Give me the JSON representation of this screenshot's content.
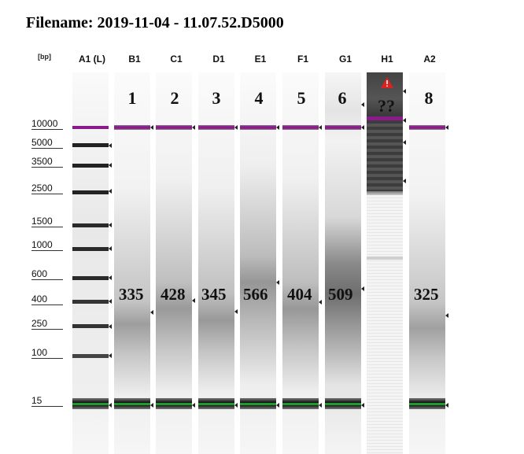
{
  "title": "Filename: 2019-11-04 - 11.07.52.D5000",
  "bp_label": "[bp]",
  "ladder_marks": [
    "10000",
    "5000",
    "3500",
    "2500",
    "1500",
    "1000",
    "600",
    "400",
    "250",
    "100",
    "15"
  ],
  "lanes": [
    {
      "label": "A1 (L)",
      "sample": "",
      "size": ""
    },
    {
      "label": "B1",
      "sample": "1",
      "size": "335"
    },
    {
      "label": "C1",
      "sample": "2",
      "size": "428"
    },
    {
      "label": "D1",
      "sample": "3",
      "size": "345"
    },
    {
      "label": "E1",
      "sample": "4",
      "size": "566"
    },
    {
      "label": "F1",
      "sample": "5",
      "size": "404"
    },
    {
      "label": "G1",
      "sample": "6",
      "size": "509"
    },
    {
      "label": "H1",
      "sample": "??",
      "size": ""
    },
    {
      "label": "A2",
      "sample": "8",
      "size": "325"
    }
  ],
  "colors": {
    "upper_marker": "#8b1a8b",
    "lower_marker": "#1f9a2e",
    "warning": "#e02020"
  },
  "warning_icon": "warning-triangle-icon"
}
